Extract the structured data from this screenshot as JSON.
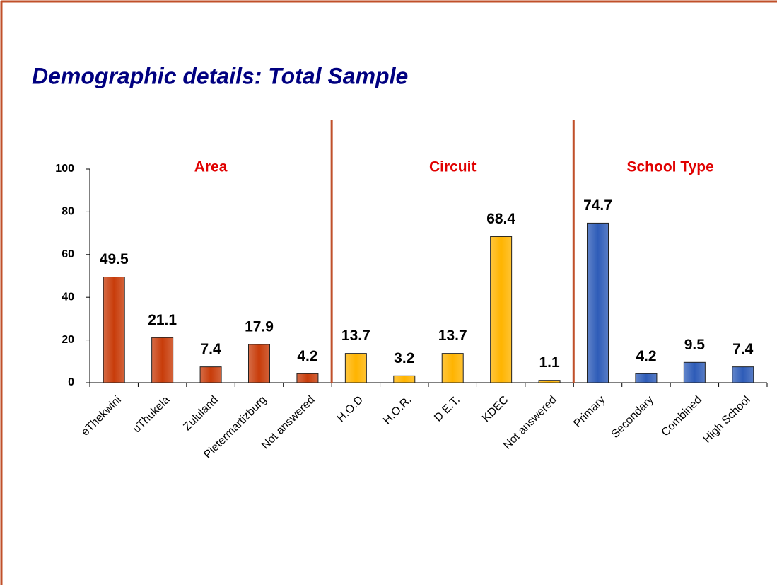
{
  "chart_data": {
    "type": "bar",
    "title": "Demographic details:  Total Sample",
    "ylim": [
      0,
      100
    ],
    "yticks": [
      0,
      20,
      40,
      60,
      80,
      100
    ],
    "series": [
      {
        "name": "Area",
        "color": "#c83c0a",
        "categories": [
          "eThekwini",
          "uThukela",
          "Zululand",
          "Pietermartizburg",
          "Not answered"
        ],
        "values": [
          49.5,
          21.1,
          7.4,
          17.9,
          4.2
        ]
      },
      {
        "name": "Circuit",
        "color": "#ffb400",
        "categories": [
          "H.O.D",
          "H.O.R.",
          "D.E.T.",
          "KDEC",
          "Not answered"
        ],
        "values": [
          13.7,
          3.2,
          13.7,
          68.4,
          1.1
        ]
      },
      {
        "name": "School Type",
        "color": "#2e5cb8",
        "categories": [
          "Primary",
          "Secondary",
          "Combined",
          "High School"
        ],
        "values": [
          74.7,
          4.2,
          9.5,
          7.4
        ]
      }
    ]
  }
}
